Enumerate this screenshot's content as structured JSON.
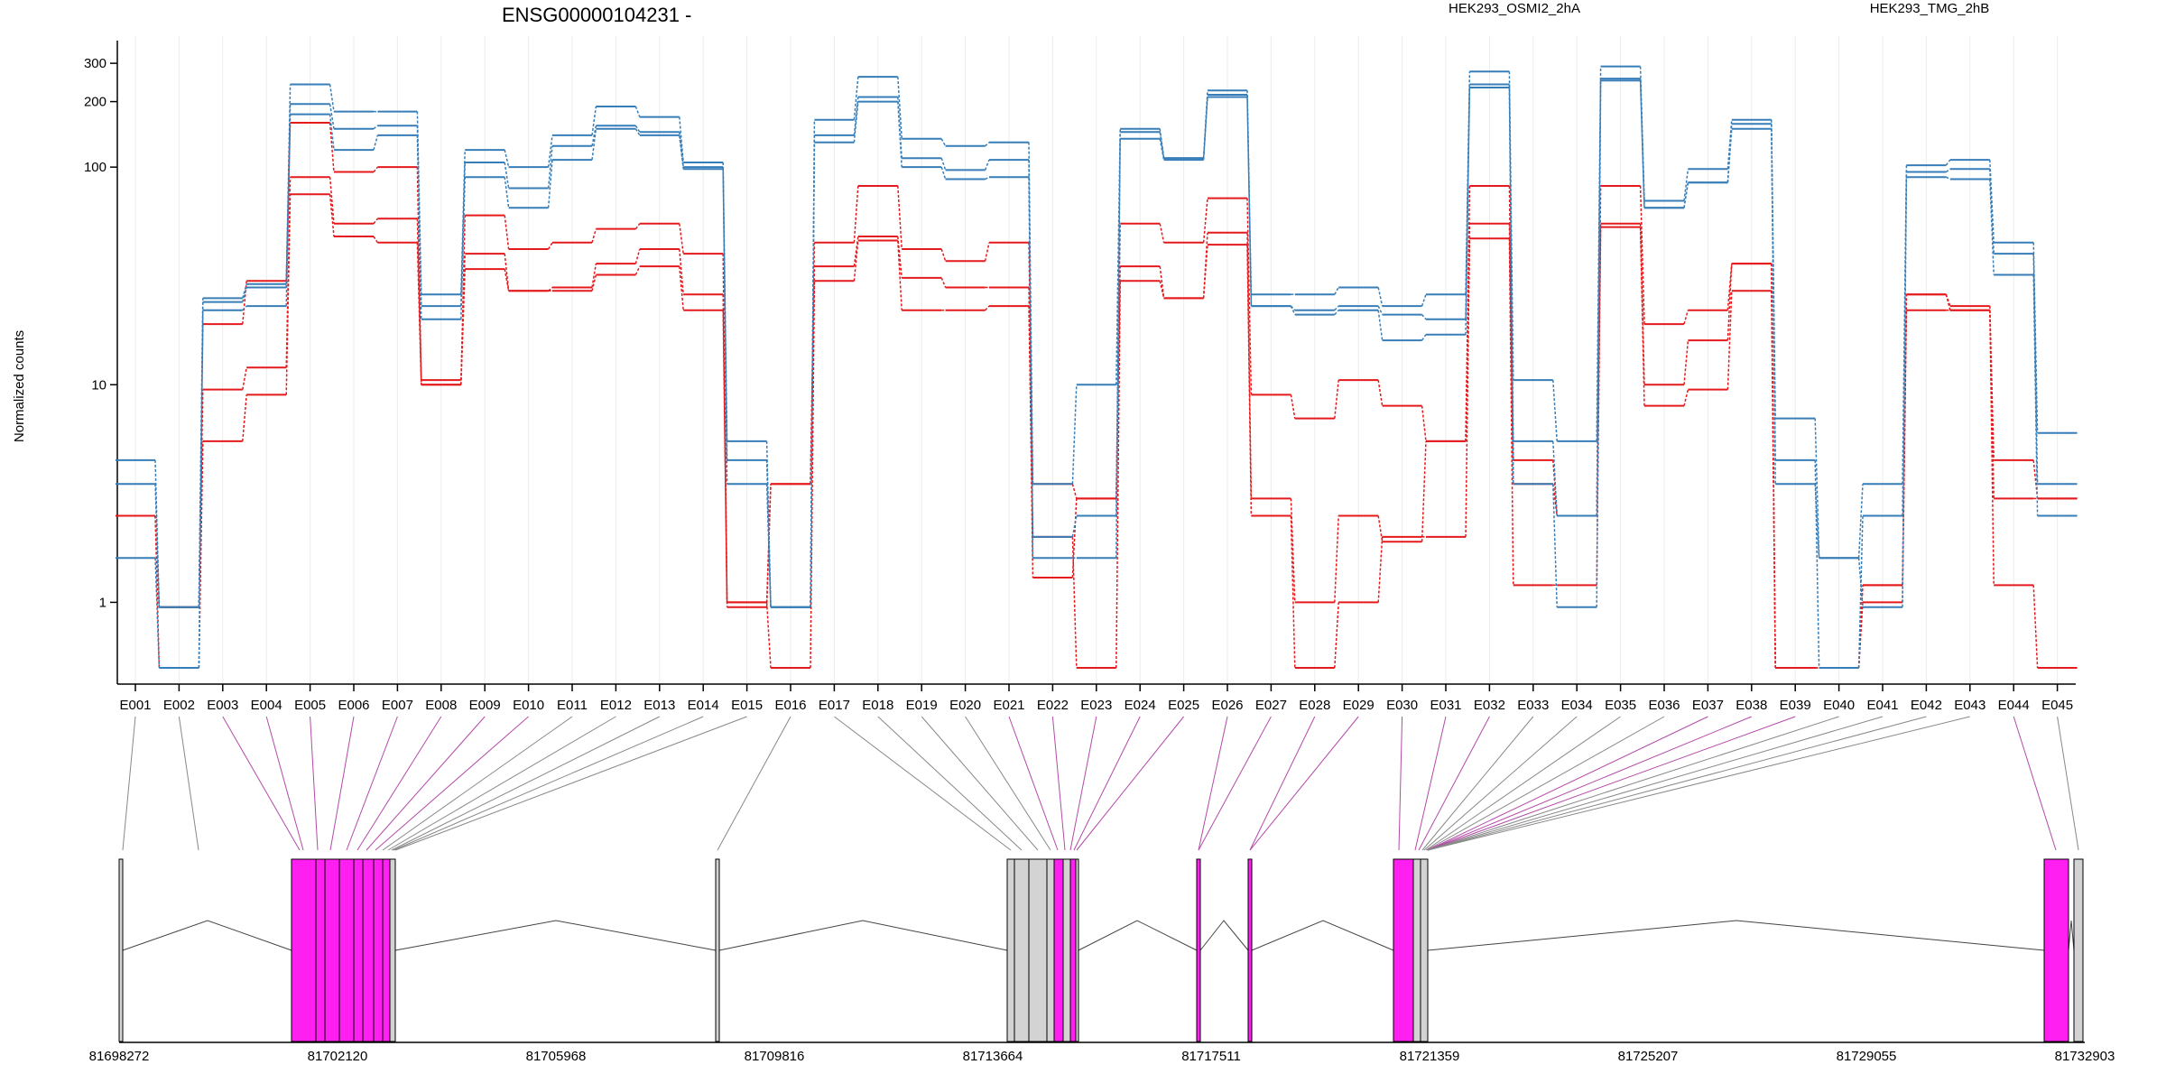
{
  "chart_data": {
    "type": "line",
    "title": "ENSG00000104231 -",
    "ylabel": "Normalized counts",
    "yscale": "log",
    "ylim": [
      0.5,
      400
    ],
    "yticks": [
      1,
      10,
      100,
      200,
      300
    ],
    "grid": "vertical",
    "legend_placement": "top",
    "colors": {
      "HEK293_OSMI2_2hA": "#e41a1c",
      "HEK293_TMG_2hB": "#377eb8"
    },
    "categories": [
      "E001",
      "E002",
      "E003",
      "E004",
      "E005",
      "E006",
      "E007",
      "E008",
      "E009",
      "E010",
      "E011",
      "E012",
      "E013",
      "E014",
      "E015",
      "E016",
      "E017",
      "E018",
      "E019",
      "E020",
      "E021",
      "E022",
      "E023",
      "E024",
      "E025",
      "E026",
      "E027",
      "E028",
      "E029",
      "E030",
      "E031",
      "E032",
      "E033",
      "E034",
      "E035",
      "E036",
      "E037",
      "E038",
      "E039",
      "E040",
      "E041",
      "E042",
      "E043",
      "E044",
      "E045"
    ],
    "series": [
      {
        "name": "HEK293_OSMI2_2hA",
        "values": [
          2.5,
          0.5,
          5.5,
          9,
          75,
          48,
          45,
          10,
          34,
          27,
          27,
          32,
          35,
          22,
          1,
          0.5,
          30,
          46,
          22,
          22,
          23,
          2,
          0.5,
          30,
          25,
          44,
          2.5,
          0.5,
          1,
          2,
          2,
          47,
          1.2,
          1.2,
          53,
          8,
          9.5,
          27,
          0.5,
          0.5,
          1,
          22,
          22,
          1.2,
          0.5
        ]
      },
      {
        "name": "HEK293_OSMI2_2hA",
        "values": [
          2.5,
          0.95,
          9.5,
          12,
          90,
          55,
          58,
          10.5,
          40,
          27,
          28,
          36,
          42,
          26,
          0.95,
          3.5,
          35,
          48,
          31,
          28,
          28,
          1.3,
          3,
          35,
          25,
          50,
          3,
          1,
          2.5,
          1.9,
          5.5,
          55,
          3.5,
          2.5,
          55,
          10,
          16,
          36,
          0.5,
          0.5,
          1.2,
          26,
          22,
          3,
          3
        ]
      },
      {
        "name": "HEK293_OSMI2_2hA",
        "values": [
          2.5,
          0.95,
          19,
          30,
          160,
          95,
          100,
          10,
          60,
          42,
          45,
          52,
          55,
          40,
          1,
          3.5,
          45,
          82,
          42,
          37,
          45,
          3.5,
          3,
          55,
          45,
          72,
          9,
          7,
          10.5,
          8,
          5.5,
          82,
          4.5,
          2.5,
          82,
          19,
          22,
          36,
          0.5,
          0.5,
          1.2,
          26,
          23,
          4.5,
          3
        ]
      },
      {
        "name": "HEK293_TMG_2hB",
        "values": [
          1.6,
          0.5,
          22,
          23,
          175,
          120,
          140,
          20,
          90,
          65,
          108,
          150,
          140,
          98,
          4.5,
          0.95,
          130,
          200,
          100,
          88,
          90,
          1.6,
          1.6,
          135,
          108,
          210,
          23,
          21,
          22,
          16,
          17,
          232,
          3.5,
          0.95,
          250,
          65,
          85,
          150,
          3.5,
          1.6,
          0.95,
          90,
          88,
          32,
          2.5
        ]
      },
      {
        "name": "HEK293_TMG_2hB",
        "values": [
          3.5,
          0.95,
          24,
          28,
          195,
          150,
          155,
          23,
          105,
          80,
          125,
          155,
          145,
          100,
          3.5,
          0.95,
          140,
          210,
          110,
          97,
          108,
          2,
          2.5,
          145,
          110,
          215,
          23,
          22,
          23,
          21,
          20,
          240,
          5.5,
          2.5,
          255,
          65,
          85,
          158,
          4.5,
          0.5,
          2.5,
          95,
          98,
          40,
          3.5
        ]
      },
      {
        "name": "HEK293_TMG_2hB",
        "values": [
          4.5,
          0.95,
          25,
          29,
          240,
          180,
          180,
          26,
          120,
          100,
          140,
          190,
          170,
          105,
          5.5,
          0.95,
          165,
          260,
          135,
          125,
          130,
          3.5,
          10,
          150,
          110,
          225,
          26,
          26,
          28,
          23,
          26,
          275,
          10.5,
          5.5,
          290,
          70,
          98,
          165,
          7,
          1.6,
          3.5,
          102,
          108,
          45,
          6
        ]
      }
    ],
    "genome_track": {
      "coordinate_labels": [
        "81698272",
        "81702120",
        "81705968",
        "81709816",
        "81713664",
        "81717511",
        "81721359",
        "81725207",
        "81729055",
        "81732903"
      ]
    }
  }
}
